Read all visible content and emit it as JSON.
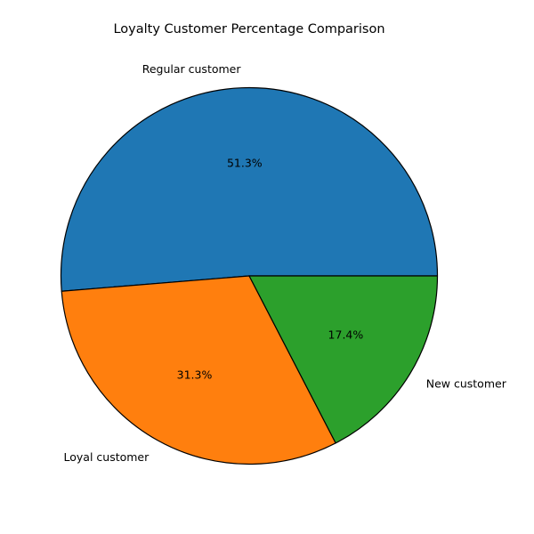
{
  "chart_data": {
    "type": "pie",
    "title": "Loyalty Customer Percentage Comparison",
    "slices": [
      {
        "label": "Regular customer",
        "value": 51.3,
        "pct_label": "51.3%",
        "color": "#1f77b4"
      },
      {
        "label": "Loyal customer",
        "value": 31.3,
        "pct_label": "31.3%",
        "color": "#ff7f0e"
      },
      {
        "label": "New customer",
        "value": 17.4,
        "pct_label": "17.4%",
        "color": "#2ca02c"
      }
    ],
    "start_angle": "3 o'clock",
    "direction": "counterclockwise",
    "edge_color": "#000000",
    "legend": "none"
  }
}
